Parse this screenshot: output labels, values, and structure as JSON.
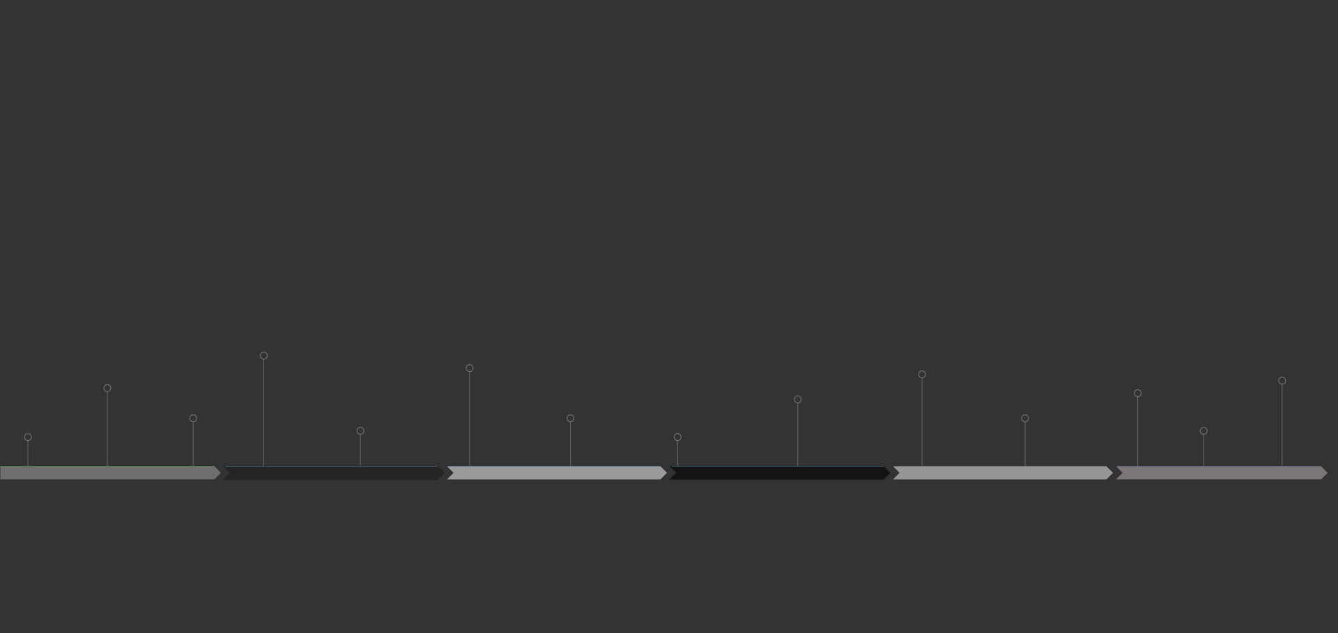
{
  "timeline": {
    "background": "#333333",
    "segments": [
      {
        "fill": "#6f6e6c",
        "edge": "#4c7a55"
      },
      {
        "fill": "#232527",
        "edge": "#4a6470"
      },
      {
        "fill": "#9b9a9b",
        "edge": "#55708a"
      },
      {
        "fill": "#111314",
        "edge": "#3f6670"
      },
      {
        "fill": "#979696",
        "edge": "#6f6f6f"
      },
      {
        "fill": "#7c7676",
        "edge": "#5a6285"
      }
    ],
    "markers": [
      {
        "segment": 0,
        "offset": 0.13,
        "height": 0.23
      },
      {
        "segment": 0,
        "offset": 0.5,
        "height": 0.62
      },
      {
        "segment": 0,
        "offset": 0.9,
        "height": 0.38
      },
      {
        "segment": 1,
        "offset": 0.19,
        "height": 0.88
      },
      {
        "segment": 1,
        "offset": 0.64,
        "height": 0.28
      },
      {
        "segment": 2,
        "offset": 0.11,
        "height": 0.78
      },
      {
        "segment": 2,
        "offset": 0.58,
        "height": 0.38
      },
      {
        "segment": 3,
        "offset": 0.04,
        "height": 0.23
      },
      {
        "segment": 3,
        "offset": 0.6,
        "height": 0.53
      },
      {
        "segment": 4,
        "offset": 0.14,
        "height": 0.73
      },
      {
        "segment": 4,
        "offset": 0.62,
        "height": 0.38
      },
      {
        "segment": 5,
        "offset": 0.11,
        "height": 0.58
      },
      {
        "segment": 5,
        "offset": 0.43,
        "height": 0.28
      },
      {
        "segment": 5,
        "offset": 0.81,
        "height": 0.68
      }
    ],
    "marker_stem_color": "#6a6a6a",
    "marker_head_color": "#7a7a7a"
  }
}
